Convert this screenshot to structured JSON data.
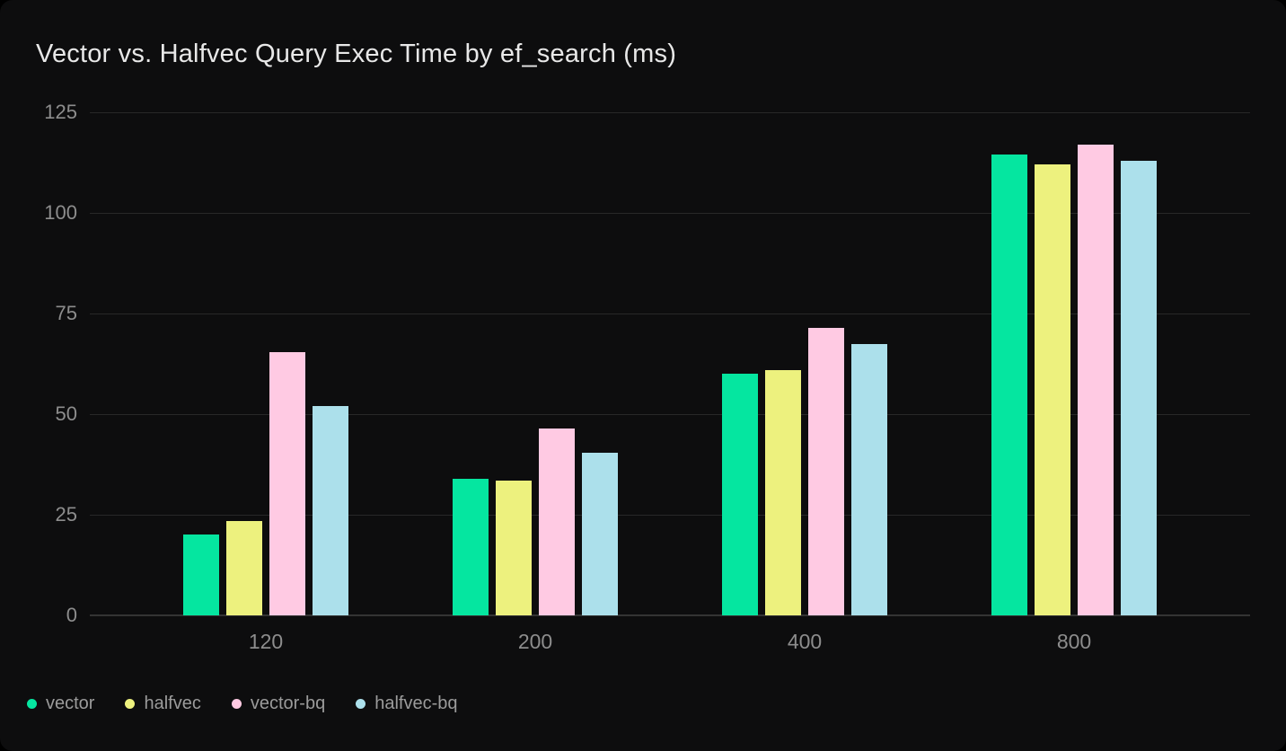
{
  "chart_data": {
    "type": "bar",
    "title": "Vector vs. Halfvec Query Exec Time by ef_search (ms)",
    "xlabel": "",
    "ylabel": "",
    "categories": [
      "120",
      "200",
      "400",
      "800"
    ],
    "series": [
      {
        "name": "vector",
        "color": "#05e6a0",
        "values": [
          20,
          34,
          60,
          114.5
        ]
      },
      {
        "name": "halfvec",
        "color": "#edf17e",
        "values": [
          23.5,
          33.5,
          61,
          112
        ]
      },
      {
        "name": "vector-bq",
        "color": "#ffcae3",
        "values": [
          65.5,
          46.5,
          71.5,
          117
        ]
      },
      {
        "name": "halfvec-bq",
        "color": "#ace0eb",
        "values": [
          52,
          40.5,
          67.5,
          113
        ]
      }
    ],
    "yticks": [
      0,
      25,
      50,
      75,
      100,
      125
    ],
    "ylim": [
      0,
      125
    ],
    "grid": true,
    "legend_position": "bottom-left"
  },
  "colors": {
    "page_background": "#000000",
    "card_background": "#0d0d0e",
    "title_text": "#e8e8e8",
    "axis_tick_text": "#8d8d8d",
    "gridline": "#282828",
    "axis_baseline": "#343434",
    "legend_text": "#9b9b9b"
  }
}
